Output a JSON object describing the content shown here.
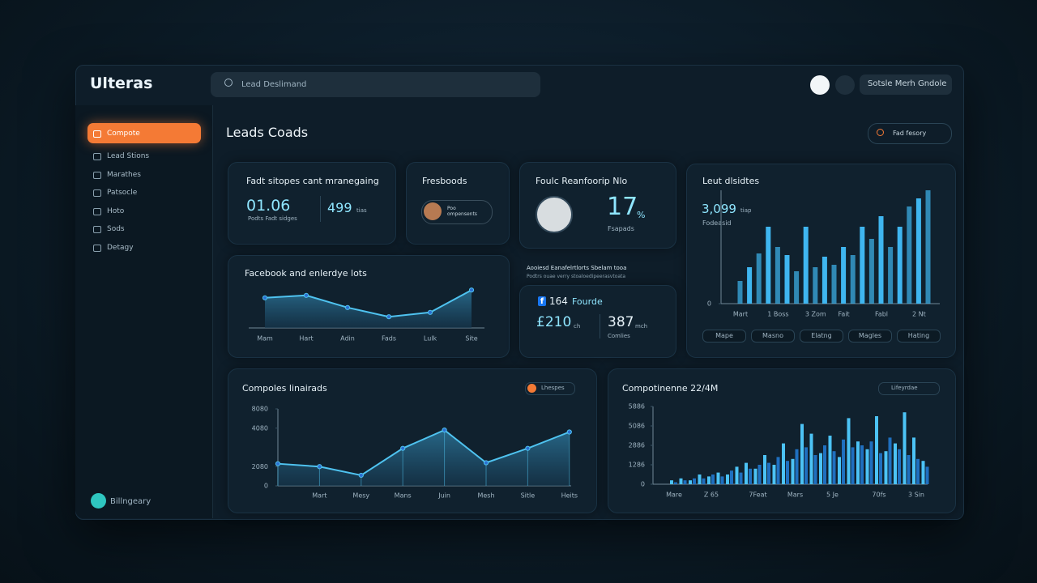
{
  "header": {
    "logo": "Ulteras",
    "search": "Lead Deslimand",
    "button": "Sotsle Merh Gndole"
  },
  "sidebar": {
    "items": [
      "Compote",
      "Lead Stions",
      "Marathes",
      "Patsocle",
      "Hoto",
      "Sods",
      "Detagy"
    ],
    "user": "Billngeary"
  },
  "main": {
    "title": "Leads Coads",
    "filter": "Fad fesory"
  },
  "card1": {
    "title": "Fadt sitopes cant mranegaing",
    "value": "01.06",
    "caption": "Podts Fadt sidges",
    "value2": "499",
    "unit2": "tias"
  },
  "card2": {
    "title": "Fresboods",
    "pill": "Poo ompensents"
  },
  "card3": {
    "title": "Foulc Reanfoorip Nlo",
    "value": "17",
    "unit": "%",
    "caption": "Fsapads"
  },
  "card4": {
    "title": "Leut dlsidtes",
    "value": "3,099",
    "unit": "tiap",
    "caption": "Fodeasid",
    "buttons": [
      "Mape",
      "Masno",
      "Elatng",
      "Magles",
      "Hating"
    ]
  },
  "lead_chart": {
    "type": "bar",
    "color": "#3fb6f0",
    "ylim": [
      0,
      140
    ],
    "yticks": [
      0
    ],
    "categories": [
      "Mart",
      null,
      null,
      null,
      "1 Boss",
      null,
      null,
      null,
      "3 Zom",
      null,
      null,
      "Fait",
      null,
      null,
      null,
      "Fabl",
      null,
      null,
      null,
      "2 Nt",
      null
    ],
    "values": [
      28,
      45,
      62,
      95,
      70,
      60,
      40,
      95,
      45,
      58,
      48,
      70,
      60,
      95,
      80,
      108,
      70,
      95,
      120,
      130,
      140
    ]
  },
  "card5": {
    "title": "Facebook and enlerdye lots"
  },
  "fb_chart": {
    "type": "area",
    "color": "#4fc3f0",
    "ylim": [
      0,
      10
    ],
    "categories": [
      "Mam",
      "Hart",
      "Adin",
      "Fads",
      "Lulk",
      "Site"
    ],
    "values": [
      6.2,
      6.7,
      4.2,
      2.3,
      3.2,
      7.8
    ]
  },
  "notice": {
    "title": "Aooiesd Eanafelrtlorts Sbelam tooa",
    "subtitle": "Podtrs ouae verry stoaloedipeerasvtoata"
  },
  "card6": {
    "icon": "f",
    "value": "164",
    "label": "Fourde",
    "value2": "£210",
    "unit2": "ch",
    "value3": "387",
    "unit3": "mch",
    "caption": "Comlies"
  },
  "card7": {
    "title": "Compoles linairads",
    "badge": "Lhespes"
  },
  "comp_chart": {
    "type": "area",
    "color": "#4fc3f0",
    "ylim": [
      0,
      4000
    ],
    "yticks": [
      0,
      {
        "value": 1000,
        "label": "2080"
      },
      {
        "value": 3000,
        "label": "4080"
      },
      {
        "value": 4000,
        "label": "8080"
      }
    ],
    "categories": [
      null,
      "Mart",
      "Mesy",
      "Mans",
      "Juin",
      "Mesh",
      "Sitle",
      "Heits"
    ],
    "values": [
      1150,
      1000,
      550,
      1950,
      2900,
      1200,
      1950,
      2800
    ]
  },
  "card8": {
    "title": "Compotinenne 22/4M",
    "badge": "Lifeyrdae"
  },
  "comp2_chart": {
    "type": "bar",
    "ylim": [
      0,
      4
    ],
    "yticks": [
      0,
      {
        "value": 1,
        "label": "1286"
      },
      {
        "value": 2,
        "label": "2886"
      },
      {
        "value": 3,
        "label": "5086"
      },
      {
        "value": 4,
        "label": "5886"
      }
    ],
    "categories": [
      "Mare",
      null,
      null,
      null,
      "Z 65",
      null,
      null,
      null,
      null,
      "7Feat",
      null,
      null,
      null,
      "Mars",
      null,
      null,
      null,
      "5 Je",
      null,
      null,
      null,
      null,
      "70fs",
      null,
      null,
      null,
      "3 Sin",
      null
    ],
    "series": [
      {
        "color": "#4cc3f5",
        "values": [
          0.2,
          0.3,
          0.2,
          0.5,
          0.4,
          0.6,
          0.5,
          0.9,
          1.1,
          0.8,
          1.5,
          1.0,
          2.1,
          1.3,
          3.1,
          2.6,
          1.6,
          2.5,
          1.4,
          3.4,
          2.2,
          1.8,
          3.5,
          1.7,
          2.1,
          3.7,
          2.4,
          1.2
        ]
      },
      {
        "color": "#1f6fbf",
        "values": [
          0.1,
          0.2,
          0.3,
          0.3,
          0.5,
          0.4,
          0.7,
          0.6,
          0.8,
          1.0,
          1.1,
          1.4,
          1.2,
          1.8,
          1.9,
          1.5,
          2.0,
          1.7,
          2.3,
          1.9,
          2.0,
          2.2,
          1.6,
          2.4,
          1.8,
          1.5,
          1.3,
          0.9
        ]
      }
    ]
  }
}
